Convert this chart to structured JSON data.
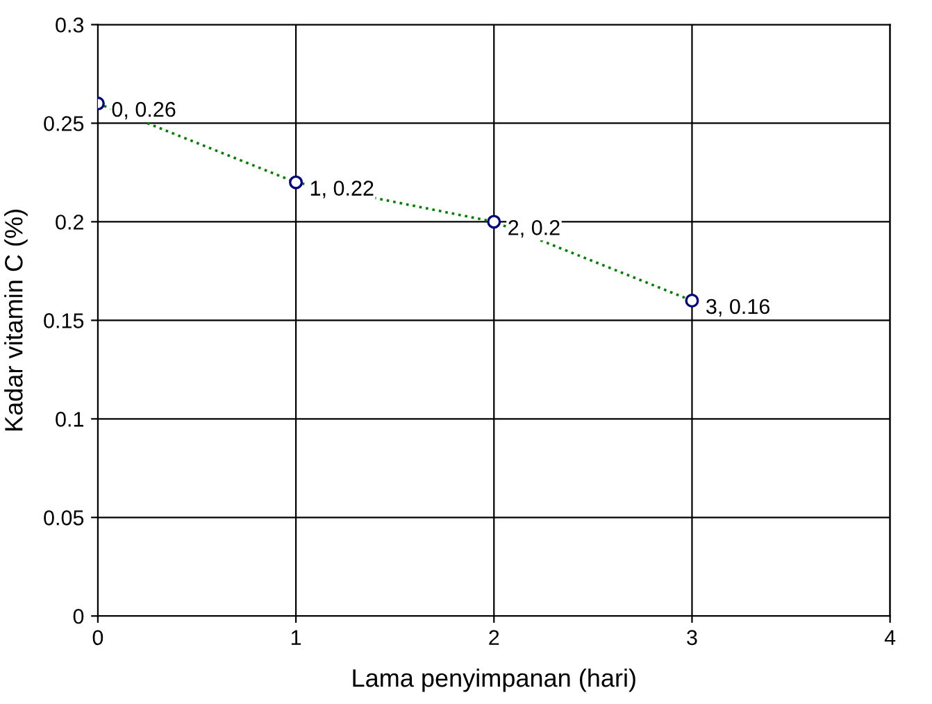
{
  "chart_data": {
    "type": "scatter",
    "xlabel": "Lama penyimpanan (hari)",
    "ylabel": "Kadar vitamin C (%)",
    "series": [
      {
        "type": "line",
        "color": "#008000",
        "x": [
          0,
          1,
          2,
          3
        ],
        "values": [
          0.26,
          0.22,
          0.2,
          0.16
        ],
        "line_style": "dotted",
        "marker": "none"
      },
      {
        "color": "#000080",
        "x": [
          0,
          1,
          2,
          3
        ],
        "values": [
          0.26,
          0.22,
          0.2,
          0.16
        ],
        "marker": "circle",
        "value_labels": [
          "0, 0.26",
          "1, 0.22",
          "2, 0.2",
          "3, 0.16"
        ]
      }
    ],
    "xlim": [
      0,
      4
    ],
    "xticks": [
      0,
      1,
      2,
      3,
      4
    ],
    "ylim": [
      0,
      0.3
    ],
    "yticks": [
      0,
      0.05,
      0.1,
      0.15,
      0.2,
      0.25,
      0.3
    ],
    "grid": true
  }
}
